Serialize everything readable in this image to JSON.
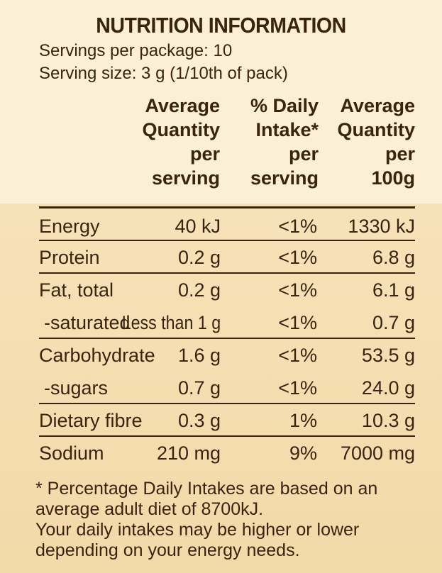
{
  "title": "NUTRITION INFORMATION",
  "servings_per_package": "Servings per package: 10",
  "serving_size": "Serving size: 3 g (1/10th of pack)",
  "headers": {
    "per_serving": [
      "Average",
      "Quantity",
      "per",
      "serving"
    ],
    "daily_intake": [
      "% Daily",
      "Intake*",
      "per",
      "serving"
    ],
    "per_100g": [
      "Average",
      "Quantity",
      "per",
      "100g"
    ]
  },
  "rows": [
    {
      "label": "Energy",
      "per_serving": "40 kJ",
      "daily": "<1%",
      "per_100g": "1330 kJ"
    },
    {
      "label": "Protein",
      "per_serving": "0.2 g",
      "daily": "<1%",
      "per_100g": "6.8 g"
    },
    {
      "label": "Fat, total",
      "per_serving": "0.2 g",
      "daily": "<1%",
      "per_100g": "6.1 g"
    },
    {
      "label": "-saturated",
      "per_serving": "Less than 1 g",
      "daily": "<1%",
      "per_100g": "0.7 g"
    },
    {
      "label": "Carbohydrate",
      "per_serving": "1.6 g",
      "daily": "<1%",
      "per_100g": "53.5 g"
    },
    {
      "label": "-sugars",
      "per_serving": "0.7 g",
      "daily": "<1%",
      "per_100g": "24.0 g"
    },
    {
      "label": "Dietary fibre",
      "per_serving": "0.3 g",
      "daily": "1%",
      "per_100g": "10.3 g"
    },
    {
      "label": "Sodium",
      "per_serving": "210 mg",
      "daily": "9%",
      "per_100g": "7000 mg"
    }
  ],
  "footnote": [
    "* Percentage Daily Intakes are based on an",
    "average adult diet of 8700kJ.",
    "Your daily intakes may be higher or lower",
    "depending on your energy needs."
  ]
}
